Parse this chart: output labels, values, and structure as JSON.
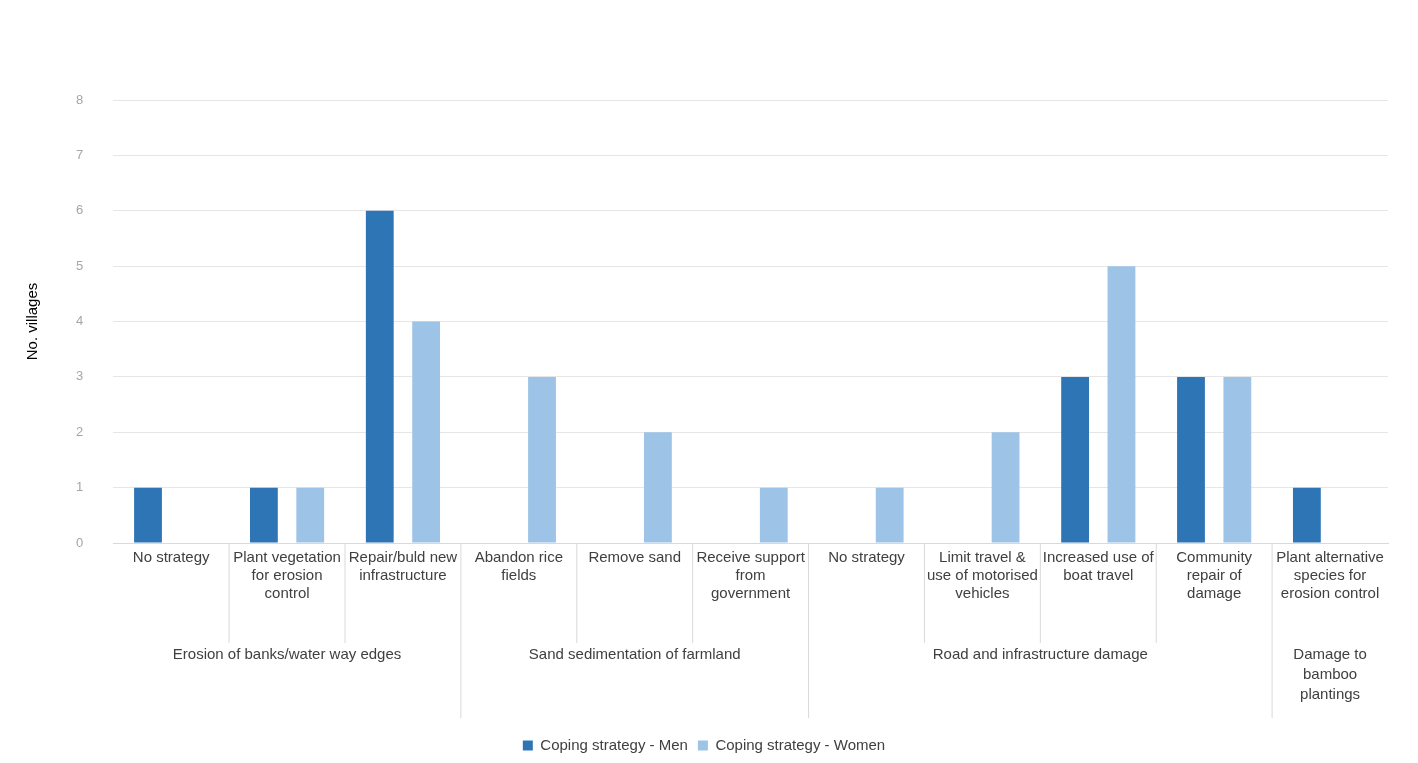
{
  "chart_data": {
    "type": "bar",
    "ylabel": "No. villages",
    "categories": [
      "No strategy",
      "Plant vegetation for erosion control",
      "Repair/buld new infrastructure",
      "Abandon rice fields",
      "Remove sand",
      "Receive support from government",
      "No strategy",
      "Limit  travel & use of motorised vehicles",
      "Increased use of boat travel",
      "Community repair of damage",
      "Plant alternative species for erosion control"
    ],
    "series": [
      {
        "name": "Coping strategy - Men",
        "color": "#2e75b6",
        "values": [
          1,
          1,
          6,
          null,
          null,
          null,
          null,
          null,
          3,
          3,
          1
        ]
      },
      {
        "name": "Coping strategy - Women",
        "color": "#9dc3e6",
        "values": [
          null,
          1,
          4,
          3,
          2,
          1,
          1,
          2,
          5,
          3,
          null
        ]
      }
    ],
    "ylim": [
      0,
      8
    ],
    "yticks": [
      0,
      1,
      2,
      3,
      4,
      5,
      6,
      7,
      8
    ],
    "grid": "y",
    "legend": "bottom",
    "annotations": [
      "Erosion of banks/water way edges",
      "Sand sedimentation of farmland",
      "Road and infrastructure damage",
      "Damage to bamboo plantings"
    ]
  }
}
